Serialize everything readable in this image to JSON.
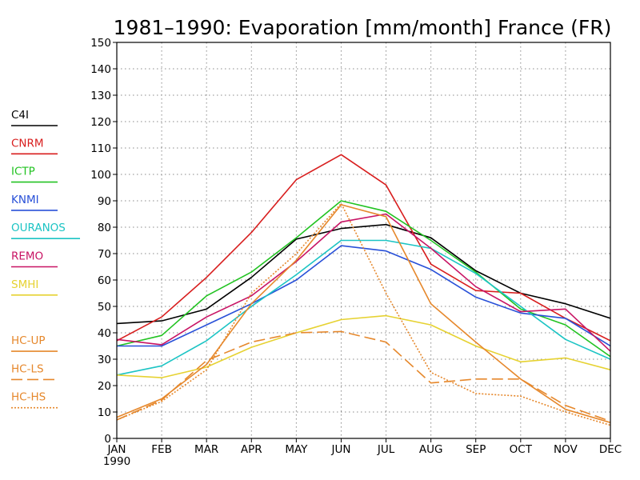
{
  "chart_data": {
    "type": "line",
    "title": "1981–1990: Evaporation [mm/month] France (FR)",
    "xlabel": "",
    "ylabel": "",
    "categories": [
      "JAN",
      "FEB",
      "MAR",
      "APR",
      "MAY",
      "JUN",
      "JUL",
      "AUG",
      "SEP",
      "OCT",
      "NOV",
      "DEC"
    ],
    "x_year_label": "1990",
    "ylim": [
      0,
      150
    ],
    "yticks": [
      0,
      10,
      20,
      30,
      40,
      50,
      60,
      70,
      80,
      90,
      100,
      110,
      120,
      130,
      140,
      150
    ],
    "grid": true,
    "legend_position": "left",
    "series": [
      {
        "name": "C4I",
        "color": "#000000",
        "style": "solid",
        "values": [
          43.5,
          44.5,
          49,
          61,
          75.5,
          79.5,
          81,
          76,
          63.5,
          55,
          51,
          45.5
        ]
      },
      {
        "name": "CNRM",
        "color": "#d81e1e",
        "style": "solid",
        "values": [
          37,
          46,
          61,
          78,
          98,
          107.5,
          96,
          66,
          56,
          55,
          45.5,
          37
        ]
      },
      {
        "name": "ICTP",
        "color": "#22c322",
        "style": "solid",
        "values": [
          35,
          39,
          54,
          63,
          76,
          90,
          86,
          75,
          63,
          49,
          43,
          31
        ]
      },
      {
        "name": "KNMI",
        "color": "#2850d8",
        "style": "solid",
        "values": [
          35,
          35,
          43,
          51,
          60,
          73,
          71,
          64,
          53.5,
          47.5,
          45.5,
          35
        ]
      },
      {
        "name": "OURANOS",
        "color": "#1cc4c4",
        "style": "solid",
        "values": [
          24,
          27.5,
          37,
          50,
          62,
          75,
          75,
          72,
          62.5,
          50,
          37.5,
          30
        ]
      },
      {
        "name": "REMO",
        "color": "#c81464",
        "style": "solid",
        "values": [
          37.5,
          35.5,
          46,
          54,
          67,
          82,
          85,
          72,
          57.5,
          48,
          49,
          33
        ]
      },
      {
        "name": "SMHI",
        "color": "#e6d232",
        "style": "solid",
        "values": [
          24,
          23,
          27,
          34.5,
          40,
          45,
          46.5,
          43,
          35,
          29,
          30.5,
          26
        ]
      },
      {
        "name": "HC-UP",
        "color": "#e6882c",
        "style": "solid",
        "values": [
          8,
          15,
          28,
          51,
          67.5,
          88.5,
          84,
          51,
          36.5,
          22.5,
          11,
          6
        ]
      },
      {
        "name": "HC-LS",
        "color": "#e6882c",
        "style": "dashed",
        "values": [
          7,
          14.5,
          29.5,
          36.5,
          40,
          40.5,
          36.5,
          21,
          22.5,
          22.5,
          12.5,
          6.5
        ]
      },
      {
        "name": "HC-HS",
        "color": "#e6882c",
        "style": "dotted",
        "values": [
          7,
          14,
          26,
          55,
          70,
          89,
          55,
          25,
          17,
          16,
          10,
          5
        ]
      }
    ]
  }
}
